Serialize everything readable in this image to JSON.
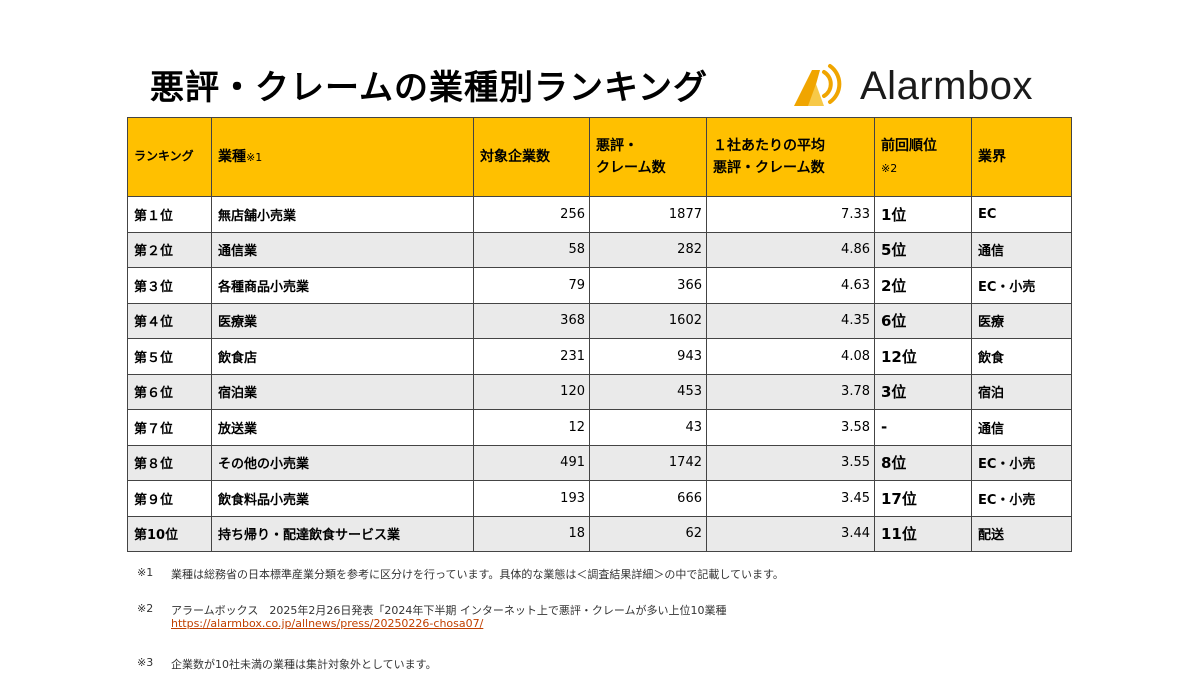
{
  "title": "悪評・クレームの業種別ランキング",
  "logo": {
    "text": "Alarmbox",
    "icon": "alarmbox-logo-icon",
    "color": "#F0A500"
  },
  "table": {
    "header_color": "#FFC000",
    "headers": {
      "rank": "ランキング",
      "industry": "業種",
      "industry_note": "※1",
      "companies": "対象企業数",
      "complaints_1": "悪評・",
      "complaints_2": "クレーム数",
      "avg_1": "１社あたりの平均",
      "avg_2": "悪評・クレーム数",
      "prev": "前回順位",
      "prev_note": "※2",
      "sector": "業界"
    },
    "rows": [
      {
        "rank": "第１位",
        "industry": "無店舗小売業",
        "companies": "256",
        "complaints": "1877",
        "avg": "7.33",
        "prev": "1位",
        "sector": "EC"
      },
      {
        "rank": "第２位",
        "industry": "通信業",
        "companies": "58",
        "complaints": "282",
        "avg": "4.86",
        "prev": "5位",
        "sector": "通信"
      },
      {
        "rank": "第３位",
        "industry": "各種商品小売業",
        "companies": "79",
        "complaints": "366",
        "avg": "4.63",
        "prev": "2位",
        "sector": "EC・小売"
      },
      {
        "rank": "第４位",
        "industry": "医療業",
        "companies": "368",
        "complaints": "1602",
        "avg": "4.35",
        "prev": "6位",
        "sector": "医療"
      },
      {
        "rank": "第５位",
        "industry": "飲食店",
        "companies": "231",
        "complaints": "943",
        "avg": "4.08",
        "prev": "12位",
        "sector": "飲食"
      },
      {
        "rank": "第６位",
        "industry": "宿泊業",
        "companies": "120",
        "complaints": "453",
        "avg": "3.78",
        "prev": "3位",
        "sector": "宿泊"
      },
      {
        "rank": "第７位",
        "industry": "放送業",
        "companies": "12",
        "complaints": "43",
        "avg": "3.58",
        "prev": "-",
        "sector": "通信"
      },
      {
        "rank": "第８位",
        "industry": "その他の小売業",
        "companies": "491",
        "complaints": "1742",
        "avg": "3.55",
        "prev": "8位",
        "sector": "EC・小売"
      },
      {
        "rank": "第９位",
        "industry": "飲食料品小売業",
        "companies": "193",
        "complaints": "666",
        "avg": "3.45",
        "prev": "17位",
        "sector": "EC・小売"
      },
      {
        "rank": "第10位",
        "industry": "持ち帰り・配達飲食サービス業",
        "companies": "18",
        "complaints": "62",
        "avg": "3.44",
        "prev": "11位",
        "sector": "配送"
      }
    ]
  },
  "notes": {
    "n1_mark": "※1",
    "n1_text": "業種は総務省の日本標準産業分類を参考に区分けを行っています。具体的な業態は＜調査結果詳細＞の中で記載しています。",
    "n2_mark": "※2",
    "n2_text": "アラームボックス　2025年2月26日発表「2024年下半期 インターネット上で悪評・クレームが多い上位10業種",
    "n2_link": "https://alarmbox.co.jp/allnews/press/20250226-chosa07/",
    "n3_mark": "※3",
    "n3_text": "企業数が10社未満の業種は集計対象外としています。"
  }
}
